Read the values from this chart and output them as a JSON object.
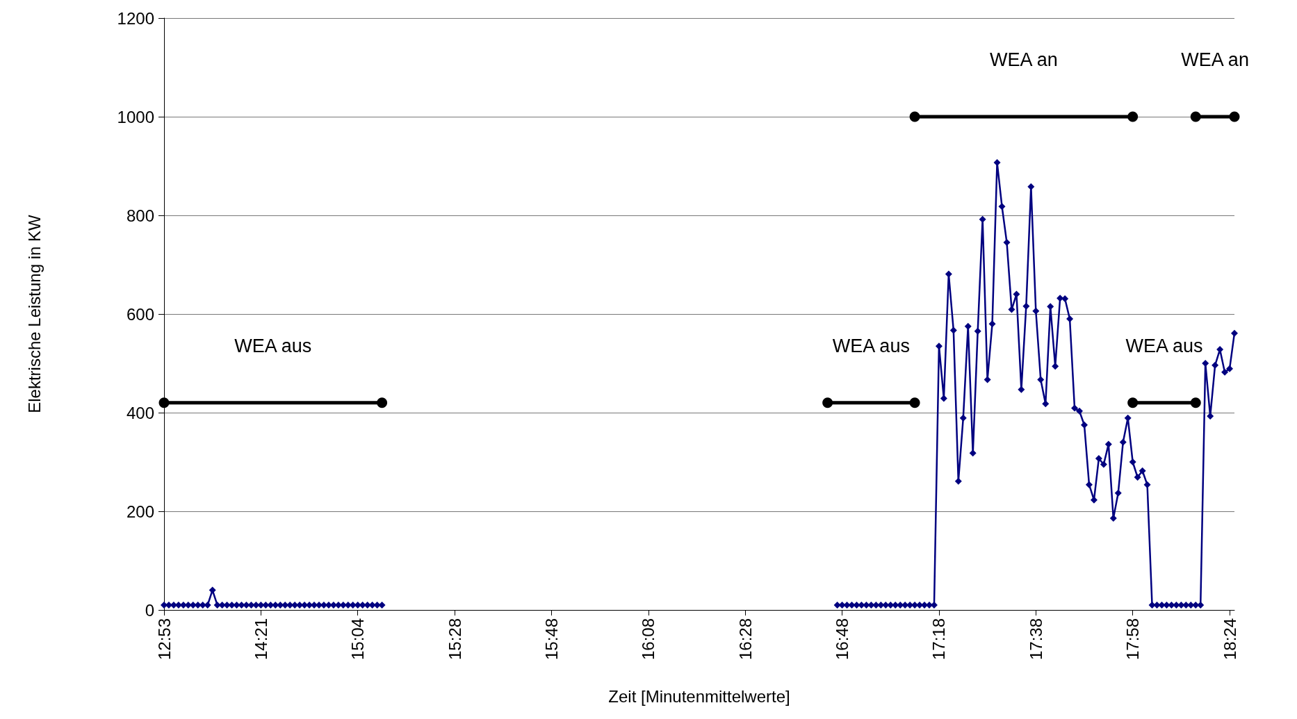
{
  "chart_data": {
    "type": "line",
    "xlabel": "Zeit [Minutenmittelwerte]",
    "ylabel": "Elektrische Leistung in KW",
    "categories": [
      "12:53",
      null,
      null,
      null,
      null,
      null,
      null,
      null,
      null,
      null,
      null,
      null,
      null,
      null,
      null,
      null,
      null,
      null,
      null,
      null,
      "14:21",
      null,
      null,
      null,
      null,
      null,
      null,
      null,
      null,
      null,
      null,
      null,
      null,
      null,
      null,
      null,
      null,
      null,
      null,
      null,
      "15:04",
      null,
      null,
      null,
      null,
      null,
      null,
      null,
      null,
      null,
      null,
      null,
      null,
      null,
      null,
      null,
      null,
      null,
      null,
      null,
      "15:28",
      null,
      null,
      null,
      null,
      null,
      null,
      null,
      null,
      null,
      null,
      null,
      null,
      null,
      null,
      null,
      null,
      null,
      null,
      null,
      "15:48",
      null,
      null,
      null,
      null,
      null,
      null,
      null,
      null,
      null,
      null,
      null,
      null,
      null,
      null,
      null,
      null,
      null,
      null,
      null,
      "16:08",
      null,
      null,
      null,
      null,
      null,
      null,
      null,
      null,
      null,
      null,
      null,
      null,
      null,
      null,
      null,
      null,
      null,
      null,
      null,
      "16:28",
      null,
      null,
      null,
      null,
      null,
      null,
      null,
      null,
      null,
      null,
      null,
      null,
      null,
      null,
      null,
      null,
      null,
      null,
      null,
      "16:48",
      null,
      null,
      null,
      null,
      null,
      null,
      null,
      null,
      null,
      null,
      null,
      null,
      null,
      null,
      null,
      null,
      null,
      null,
      null,
      "17:18",
      null,
      null,
      null,
      null,
      null,
      null,
      null,
      null,
      null,
      null,
      null,
      null,
      null,
      null,
      null,
      null,
      null,
      null,
      null,
      "17:38",
      null,
      null,
      null,
      null,
      null,
      null,
      null,
      null,
      null,
      null,
      null,
      null,
      null,
      null,
      null,
      null,
      null,
      null,
      null,
      "17:58",
      null,
      null,
      null,
      null,
      null,
      null,
      null,
      null,
      null,
      null,
      null,
      null,
      null,
      null,
      null,
      null,
      null,
      null,
      null,
      "18:24",
      null
    ],
    "series": [
      {
        "color": "#000080",
        "marker": "diamond",
        "values": [
          10,
          10,
          10,
          10,
          10,
          10,
          10,
          10,
          10,
          10,
          40,
          10,
          10,
          10,
          10,
          10,
          10,
          10,
          10,
          10,
          10,
          10,
          10,
          10,
          10,
          10,
          10,
          10,
          10,
          10,
          10,
          10,
          10,
          10,
          10,
          10,
          10,
          10,
          10,
          10,
          10,
          10,
          10,
          10,
          10,
          10,
          null,
          null,
          null,
          null,
          null,
          null,
          null,
          null,
          null,
          null,
          null,
          null,
          null,
          null,
          null,
          null,
          null,
          null,
          null,
          null,
          null,
          null,
          null,
          null,
          null,
          null,
          null,
          null,
          null,
          null,
          null,
          null,
          null,
          null,
          null,
          null,
          null,
          null,
          null,
          null,
          null,
          null,
          null,
          null,
          null,
          null,
          null,
          null,
          null,
          null,
          null,
          null,
          null,
          null,
          null,
          null,
          null,
          null,
          null,
          null,
          null,
          null,
          null,
          null,
          null,
          null,
          null,
          null,
          null,
          null,
          null,
          null,
          null,
          null,
          null,
          null,
          null,
          null,
          null,
          null,
          null,
          null,
          null,
          null,
          null,
          null,
          null,
          null,
          null,
          null,
          null,
          null,
          null,
          10,
          10,
          10,
          10,
          10,
          10,
          10,
          10,
          10,
          10,
          10,
          10,
          10,
          10,
          10,
          10,
          10,
          10,
          10,
          10,
          10,
          535,
          429,
          681,
          567,
          261,
          389,
          575,
          318,
          565,
          792,
          467,
          580,
          907,
          818,
          745,
          609,
          640,
          447,
          616,
          858,
          606,
          467,
          418,
          615,
          494,
          632,
          631,
          590,
          409,
          403,
          375,
          254,
          223,
          307,
          295,
          336,
          186,
          237,
          340,
          389,
          300,
          269,
          282,
          254,
          10,
          10,
          10,
          10,
          10,
          10,
          10,
          10,
          10,
          10,
          10,
          500,
          393,
          496,
          528,
          482,
          489,
          561
        ]
      },
      {
        "name": "WEA aus",
        "color": "#000000",
        "marker": "circle",
        "values": [
          420,
          null,
          null,
          null,
          null,
          null,
          null,
          null,
          null,
          null,
          null,
          null,
          null,
          null,
          null,
          null,
          null,
          null,
          null,
          null,
          null,
          null,
          null,
          null,
          null,
          null,
          null,
          null,
          null,
          null,
          null,
          null,
          null,
          null,
          null,
          null,
          null,
          null,
          null,
          null,
          null,
          null,
          null,
          null,
          null,
          420,
          null,
          null,
          null,
          null,
          null,
          null,
          null,
          null,
          null,
          null,
          null,
          null,
          null,
          null,
          null,
          null,
          null,
          null,
          null,
          null,
          null,
          null,
          null,
          null,
          null,
          null,
          null,
          null,
          null,
          null,
          null,
          null,
          null,
          null,
          null,
          null,
          null,
          null,
          null,
          null,
          null,
          null,
          null,
          null,
          null,
          null,
          null,
          null,
          null,
          null,
          null,
          null,
          null,
          null,
          null,
          null,
          null,
          null,
          null,
          null,
          null,
          null,
          null,
          null,
          null,
          null,
          null,
          null,
          null,
          null,
          null,
          null,
          null,
          null,
          null,
          null,
          null,
          null,
          null,
          null,
          null,
          null,
          null,
          null,
          null,
          null,
          null,
          null,
          null,
          null,
          null,
          null,
          null,
          null,
          null,
          null,
          null,
          null,
          null,
          null,
          null,
          null,
          null,
          null,
          null,
          null,
          null,
          null,
          null,
          null,
          null,
          null,
          null,
          null,
          null,
          null,
          null,
          null,
          null,
          null,
          null,
          null,
          null,
          null,
          null,
          null,
          null,
          null,
          null,
          null,
          null,
          null,
          null,
          null,
          null,
          null,
          null,
          null,
          null,
          null,
          null,
          null,
          null,
          null,
          null,
          null,
          null,
          null,
          null,
          null,
          null,
          null,
          null,
          null,
          null,
          null,
          null,
          null,
          null,
          null,
          null,
          null,
          null,
          null,
          null,
          null,
          null,
          null,
          null,
          null,
          null,
          null,
          null,
          null,
          null,
          null
        ]
      },
      {
        "name": "WEA aus",
        "color": "#000000",
        "marker": "circle",
        "values": [
          null,
          null,
          null,
          null,
          null,
          null,
          null,
          null,
          null,
          null,
          null,
          null,
          null,
          null,
          null,
          null,
          null,
          null,
          null,
          null,
          null,
          null,
          null,
          null,
          null,
          null,
          null,
          null,
          null,
          null,
          null,
          null,
          null,
          null,
          null,
          null,
          null,
          null,
          null,
          null,
          null,
          null,
          null,
          null,
          null,
          null,
          null,
          null,
          null,
          null,
          null,
          null,
          null,
          null,
          null,
          null,
          null,
          null,
          null,
          null,
          null,
          null,
          null,
          null,
          null,
          null,
          null,
          null,
          null,
          null,
          null,
          null,
          null,
          null,
          null,
          null,
          null,
          null,
          null,
          null,
          null,
          null,
          null,
          null,
          null,
          null,
          null,
          null,
          null,
          null,
          null,
          null,
          null,
          null,
          null,
          null,
          null,
          null,
          null,
          null,
          null,
          null,
          null,
          null,
          null,
          null,
          null,
          null,
          null,
          null,
          null,
          null,
          null,
          null,
          null,
          null,
          null,
          null,
          null,
          null,
          null,
          null,
          null,
          null,
          null,
          null,
          null,
          null,
          null,
          null,
          null,
          null,
          null,
          null,
          null,
          null,
          null,
          420,
          null,
          null,
          null,
          null,
          null,
          null,
          null,
          null,
          null,
          null,
          null,
          null,
          null,
          null,
          null,
          null,
          null,
          420,
          null,
          null,
          null,
          null,
          null,
          null,
          null,
          null,
          null,
          null,
          null,
          null,
          null,
          null,
          null,
          null,
          null,
          null,
          null,
          null,
          null,
          null,
          null,
          null,
          null,
          null,
          null,
          null,
          null,
          null,
          null,
          null,
          null,
          null,
          null,
          null,
          null,
          null,
          null,
          null,
          null,
          null,
          null,
          null,
          null,
          null,
          null,
          null,
          null,
          null,
          null,
          null,
          null,
          null,
          null,
          null,
          null,
          null,
          null,
          null,
          null,
          null,
          null,
          null,
          null,
          null
        ]
      },
      {
        "name": "WEA aus",
        "color": "#000000",
        "marker": "circle",
        "values": [
          null,
          null,
          null,
          null,
          null,
          null,
          null,
          null,
          null,
          null,
          null,
          null,
          null,
          null,
          null,
          null,
          null,
          null,
          null,
          null,
          null,
          null,
          null,
          null,
          null,
          null,
          null,
          null,
          null,
          null,
          null,
          null,
          null,
          null,
          null,
          null,
          null,
          null,
          null,
          null,
          null,
          null,
          null,
          null,
          null,
          null,
          null,
          null,
          null,
          null,
          null,
          null,
          null,
          null,
          null,
          null,
          null,
          null,
          null,
          null,
          null,
          null,
          null,
          null,
          null,
          null,
          null,
          null,
          null,
          null,
          null,
          null,
          null,
          null,
          null,
          null,
          null,
          null,
          null,
          null,
          null,
          null,
          null,
          null,
          null,
          null,
          null,
          null,
          null,
          null,
          null,
          null,
          null,
          null,
          null,
          null,
          null,
          null,
          null,
          null,
          null,
          null,
          null,
          null,
          null,
          null,
          null,
          null,
          null,
          null,
          null,
          null,
          null,
          null,
          null,
          null,
          null,
          null,
          null,
          null,
          null,
          null,
          null,
          null,
          null,
          null,
          null,
          null,
          null,
          null,
          null,
          null,
          null,
          null,
          null,
          null,
          null,
          null,
          null,
          null,
          null,
          null,
          null,
          null,
          null,
          null,
          null,
          null,
          null,
          null,
          null,
          null,
          null,
          null,
          null,
          null,
          null,
          null,
          null,
          null,
          null,
          null,
          null,
          null,
          null,
          null,
          null,
          null,
          null,
          null,
          null,
          null,
          null,
          null,
          null,
          null,
          null,
          null,
          null,
          null,
          null,
          null,
          null,
          null,
          null,
          null,
          null,
          null,
          null,
          null,
          null,
          null,
          null,
          null,
          null,
          null,
          null,
          null,
          null,
          null,
          420,
          null,
          null,
          null,
          null,
          null,
          null,
          null,
          null,
          null,
          null,
          null,
          null,
          420,
          null,
          null,
          null,
          null,
          null,
          null,
          null,
          null
        ]
      },
      {
        "name": "WEA an",
        "color": "#000000",
        "marker": "circle",
        "values": [
          null,
          null,
          null,
          null,
          null,
          null,
          null,
          null,
          null,
          null,
          null,
          null,
          null,
          null,
          null,
          null,
          null,
          null,
          null,
          null,
          null,
          null,
          null,
          null,
          null,
          null,
          null,
          null,
          null,
          null,
          null,
          null,
          null,
          null,
          null,
          null,
          null,
          null,
          null,
          null,
          null,
          null,
          null,
          null,
          null,
          null,
          null,
          null,
          null,
          null,
          null,
          null,
          null,
          null,
          null,
          null,
          null,
          null,
          null,
          null,
          null,
          null,
          null,
          null,
          null,
          null,
          null,
          null,
          null,
          null,
          null,
          null,
          null,
          null,
          null,
          null,
          null,
          null,
          null,
          null,
          null,
          null,
          null,
          null,
          null,
          null,
          null,
          null,
          null,
          null,
          null,
          null,
          null,
          null,
          null,
          null,
          null,
          null,
          null,
          null,
          null,
          null,
          null,
          null,
          null,
          null,
          null,
          null,
          null,
          null,
          null,
          null,
          null,
          null,
          null,
          null,
          null,
          null,
          null,
          null,
          null,
          null,
          null,
          null,
          null,
          null,
          null,
          null,
          null,
          null,
          null,
          null,
          null,
          null,
          null,
          null,
          null,
          null,
          null,
          null,
          null,
          null,
          null,
          null,
          null,
          null,
          null,
          null,
          null,
          null,
          null,
          null,
          null,
          null,
          null,
          1000,
          null,
          null,
          null,
          null,
          null,
          null,
          null,
          null,
          null,
          null,
          null,
          null,
          null,
          null,
          null,
          null,
          null,
          null,
          null,
          null,
          null,
          null,
          null,
          null,
          null,
          null,
          null,
          null,
          null,
          null,
          null,
          null,
          null,
          null,
          null,
          null,
          null,
          null,
          null,
          null,
          null,
          null,
          null,
          null,
          1000,
          null,
          null,
          null,
          null,
          null,
          null,
          null,
          null,
          null,
          null,
          null,
          null,
          null,
          null,
          null,
          null,
          null,
          null,
          null,
          null,
          null
        ]
      },
      {
        "name": "WEA an",
        "color": "#000000",
        "marker": "circle",
        "values": [
          null,
          null,
          null,
          null,
          null,
          null,
          null,
          null,
          null,
          null,
          null,
          null,
          null,
          null,
          null,
          null,
          null,
          null,
          null,
          null,
          null,
          null,
          null,
          null,
          null,
          null,
          null,
          null,
          null,
          null,
          null,
          null,
          null,
          null,
          null,
          null,
          null,
          null,
          null,
          null,
          null,
          null,
          null,
          null,
          null,
          null,
          null,
          null,
          null,
          null,
          null,
          null,
          null,
          null,
          null,
          null,
          null,
          null,
          null,
          null,
          null,
          null,
          null,
          null,
          null,
          null,
          null,
          null,
          null,
          null,
          null,
          null,
          null,
          null,
          null,
          null,
          null,
          null,
          null,
          null,
          null,
          null,
          null,
          null,
          null,
          null,
          null,
          null,
          null,
          null,
          null,
          null,
          null,
          null,
          null,
          null,
          null,
          null,
          null,
          null,
          null,
          null,
          null,
          null,
          null,
          null,
          null,
          null,
          null,
          null,
          null,
          null,
          null,
          null,
          null,
          null,
          null,
          null,
          null,
          null,
          null,
          null,
          null,
          null,
          null,
          null,
          null,
          null,
          null,
          null,
          null,
          null,
          null,
          null,
          null,
          null,
          null,
          null,
          null,
          null,
          null,
          null,
          null,
          null,
          null,
          null,
          null,
          null,
          null,
          null,
          null,
          null,
          null,
          null,
          null,
          null,
          null,
          null,
          null,
          null,
          null,
          null,
          null,
          null,
          null,
          null,
          null,
          null,
          null,
          null,
          null,
          null,
          null,
          null,
          null,
          null,
          null,
          null,
          null,
          null,
          null,
          null,
          null,
          null,
          null,
          null,
          null,
          null,
          null,
          null,
          null,
          null,
          null,
          null,
          null,
          null,
          null,
          null,
          null,
          null,
          null,
          null,
          null,
          null,
          null,
          null,
          null,
          null,
          null,
          null,
          null,
          null,
          null,
          1000,
          null,
          null,
          null,
          null,
          null,
          null,
          null,
          1000
        ]
      }
    ],
    "ylim": [
      0,
      1200
    ],
    "yticks": [
      0,
      200,
      400,
      600,
      800,
      1000,
      1200
    ],
    "grid": "y",
    "legend": false
  }
}
